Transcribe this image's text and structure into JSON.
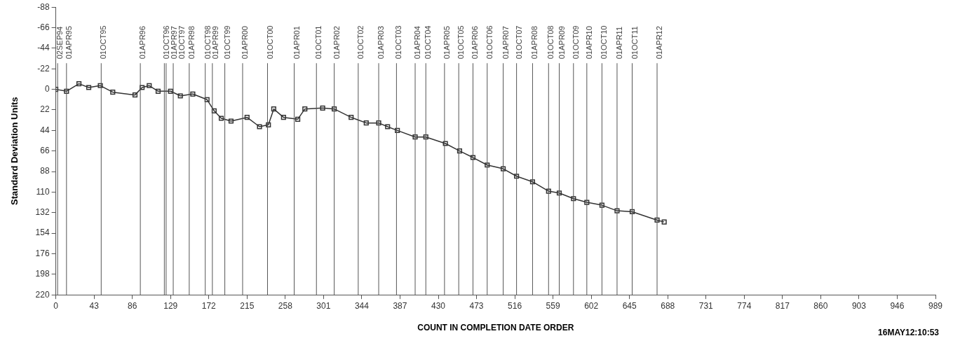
{
  "chart_data": {
    "type": "line",
    "xlabel": "COUNT IN COMPLETION DATE ORDER",
    "ylabel": "Standard Deviation Units",
    "annotations": [
      "16MAY12:10:53"
    ],
    "series": [
      {
        "color": "#333333",
        "x": [
          0,
          12,
          26,
          37,
          50,
          64,
          89,
          97,
          105,
          115,
          129,
          140,
          154,
          170,
          178,
          186,
          197,
          215,
          229,
          239,
          245,
          256,
          272,
          280,
          300,
          313,
          332,
          349,
          363,
          373,
          384,
          404,
          416,
          438,
          454,
          469,
          485,
          503,
          518,
          536,
          554,
          566,
          582,
          597,
          614,
          631,
          648,
          676,
          684
        ],
        "values": [
          0,
          2,
          -6,
          -2,
          -4,
          3,
          6,
          -2,
          -4,
          2,
          2,
          7,
          5,
          11,
          23,
          31,
          34,
          30,
          40,
          38,
          21,
          30,
          32,
          21,
          20,
          21,
          30,
          36,
          36,
          40,
          44,
          51,
          51,
          58,
          66,
          73,
          81,
          85,
          93,
          99,
          109,
          111,
          117,
          121,
          124,
          130,
          131,
          140,
          142
        ]
      }
    ],
    "marker": "square",
    "line_style": "solid",
    "grid": false,
    "legend": false,
    "xlim": [
      0,
      989
    ],
    "xticks": [
      0,
      43,
      86,
      129,
      172,
      215,
      258,
      301,
      344,
      387,
      430,
      473,
      516,
      559,
      602,
      645,
      688,
      731,
      774,
      817,
      860,
      903,
      946,
      989
    ],
    "ylim": [
      220,
      -88
    ],
    "yticks": [
      -88,
      -66,
      -44,
      -22,
      0,
      22,
      44,
      66,
      88,
      110,
      132,
      154,
      176,
      198,
      220
    ],
    "ref_lines": [
      {
        "axis": "x",
        "value": 2,
        "label": "02SEP94"
      },
      {
        "axis": "x",
        "value": 12,
        "label": "01APR95"
      },
      {
        "axis": "x",
        "value": 51,
        "label": "01OCT95"
      },
      {
        "axis": "x",
        "value": 95,
        "label": "01APR96"
      },
      {
        "axis": "x",
        "value": 122,
        "label": "01OCT96"
      },
      {
        "axis": "x",
        "value": 124,
        "label": "01APR97"
      },
      {
        "axis": "x",
        "value": 132,
        "label": "01OCT97"
      },
      {
        "axis": "x",
        "value": 150,
        "label": "01APR98"
      },
      {
        "axis": "x",
        "value": 168,
        "label": "01OCT98"
      },
      {
        "axis": "x",
        "value": 176,
        "label": "01APR99"
      },
      {
        "axis": "x",
        "value": 190,
        "label": "01OCT99"
      },
      {
        "axis": "x",
        "value": 210,
        "label": "01APR00"
      },
      {
        "axis": "x",
        "value": 238,
        "label": "01OCT00"
      },
      {
        "axis": "x",
        "value": 268,
        "label": "01APR01"
      },
      {
        "axis": "x",
        "value": 293,
        "label": "01OCT01"
      },
      {
        "axis": "x",
        "value": 313,
        "label": "01APR02"
      },
      {
        "axis": "x",
        "value": 340,
        "label": "01OCT02"
      },
      {
        "axis": "x",
        "value": 363,
        "label": "01APR03"
      },
      {
        "axis": "x",
        "value": 383,
        "label": "01OCT03"
      },
      {
        "axis": "x",
        "value": 404,
        "label": "01APR04"
      },
      {
        "axis": "x",
        "value": 416,
        "label": "01OCT04"
      },
      {
        "axis": "x",
        "value": 437,
        "label": "01APR05"
      },
      {
        "axis": "x",
        "value": 453,
        "label": "01OCT05"
      },
      {
        "axis": "x",
        "value": 469,
        "label": "01APR06"
      },
      {
        "axis": "x",
        "value": 485,
        "label": "01OCT06"
      },
      {
        "axis": "x",
        "value": 503,
        "label": "01APR07"
      },
      {
        "axis": "x",
        "value": 518,
        "label": "01OCT07"
      },
      {
        "axis": "x",
        "value": 536,
        "label": "01APR08"
      },
      {
        "axis": "x",
        "value": 554,
        "label": "01OCT08"
      },
      {
        "axis": "x",
        "value": 566,
        "label": "01APR09"
      },
      {
        "axis": "x",
        "value": 582,
        "label": "01OCT09"
      },
      {
        "axis": "x",
        "value": 597,
        "label": "01APR10"
      },
      {
        "axis": "x",
        "value": 614,
        "label": "01OCT10"
      },
      {
        "axis": "x",
        "value": 631,
        "label": "01APR11"
      },
      {
        "axis": "x",
        "value": 648,
        "label": "01OCT11"
      },
      {
        "axis": "x",
        "value": 676,
        "label": "01APR12"
      }
    ]
  }
}
